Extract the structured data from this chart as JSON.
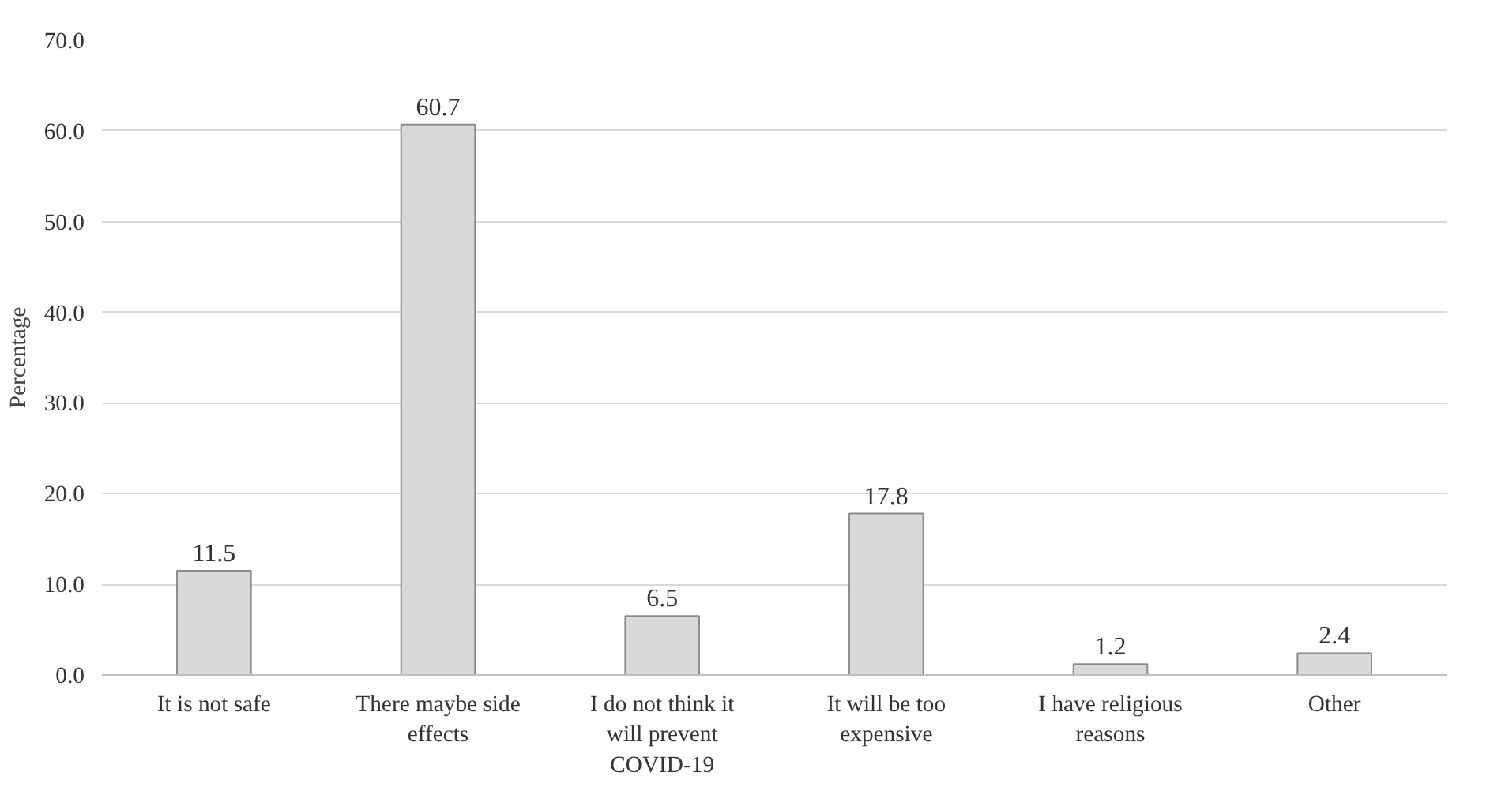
{
  "chart_data": {
    "type": "bar",
    "ylabel": "Percentage",
    "categories": [
      "It is not safe",
      "There maybe side effects",
      "I do not think it will prevent COVID-19",
      "It will be too expensive",
      "I have religious reasons",
      "Other"
    ],
    "values": [
      11.5,
      60.7,
      6.5,
      17.8,
      1.2,
      2.4
    ],
    "color": "#d9d9d9",
    "ylim": [
      0,
      70
    ],
    "yticks": [
      {
        "value": 0,
        "label": "0.0"
      },
      {
        "value": 10,
        "label": "10.0"
      },
      {
        "value": 20,
        "label": "20.0"
      },
      {
        "value": 30,
        "label": "30.0"
      },
      {
        "value": 40,
        "label": "40.0"
      },
      {
        "value": 50,
        "label": "50.0"
      },
      {
        "value": 60,
        "label": "60.0"
      },
      {
        "value": 70,
        "label": "70.0"
      }
    ],
    "grid": "y",
    "data_labels": true
  }
}
